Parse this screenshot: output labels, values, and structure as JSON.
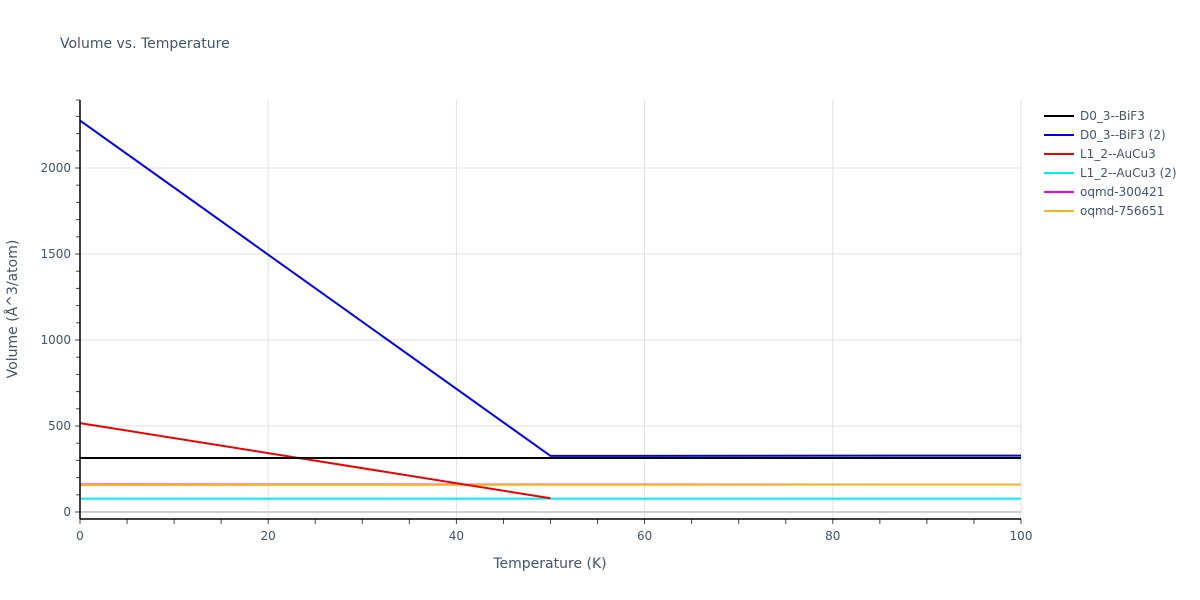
{
  "title": "Volume vs. Temperature",
  "colors": {
    "D0_3--BiF3": "#000000",
    "D0_3--BiF3 (2)": "#0000ee",
    "L1_2--AuCu3": "#ee0000",
    "L1_2--AuCu3 (2)": "#00eeee",
    "oqmd-300421": "#ee00ee",
    "oqmd-756651": "#f5b41e"
  },
  "chart_data": {
    "type": "line",
    "title": "Volume vs. Temperature",
    "xlabel": "Temperature (K)",
    "ylabel": "Volume (Å^3/atom)",
    "xlim": [
      0,
      100
    ],
    "ylim": [
      -50,
      2395
    ],
    "x_ticks": [
      0,
      20,
      40,
      60,
      80,
      100
    ],
    "y_ticks": [
      0,
      500,
      1000,
      1500,
      2000
    ],
    "grid": true,
    "legend_position": "right",
    "series": [
      {
        "name": "D0_3--BiF3",
        "color": "#000000",
        "x": [
          0,
          100
        ],
        "y": [
          314,
          314
        ]
      },
      {
        "name": "D0_3--BiF3 (2)",
        "color": "#0000ee",
        "x": [
          0,
          50,
          100
        ],
        "y": [
          2276,
          326,
          328
        ]
      },
      {
        "name": "L1_2--AuCu3",
        "color": "#ee0000",
        "x": [
          0,
          50
        ],
        "y": [
          517,
          80
        ]
      },
      {
        "name": "L1_2--AuCu3 (2)",
        "color": "#00eeee",
        "x": [
          0,
          100
        ],
        "y": [
          78,
          78
        ]
      },
      {
        "name": "oqmd-300421",
        "color": "#ee00ee",
        "x": [
          0,
          100
        ],
        "y": [
          160,
          160
        ]
      },
      {
        "name": "oqmd-756651",
        "color": "#f5b41e",
        "x": [
          0,
          100
        ],
        "y": [
          157,
          160
        ]
      }
    ]
  },
  "legend": [
    {
      "label": "D0_3--BiF3",
      "color": "#000000"
    },
    {
      "label": "D0_3--BiF3 (2)",
      "color": "#0000ee"
    },
    {
      "label": "L1_2--AuCu3",
      "color": "#ee0000"
    },
    {
      "label": "L1_2--AuCu3 (2)",
      "color": "#00eeee"
    },
    {
      "label": "oqmd-300421",
      "color": "#ee00ee"
    },
    {
      "label": "oqmd-756651",
      "color": "#f5b41e"
    }
  ]
}
